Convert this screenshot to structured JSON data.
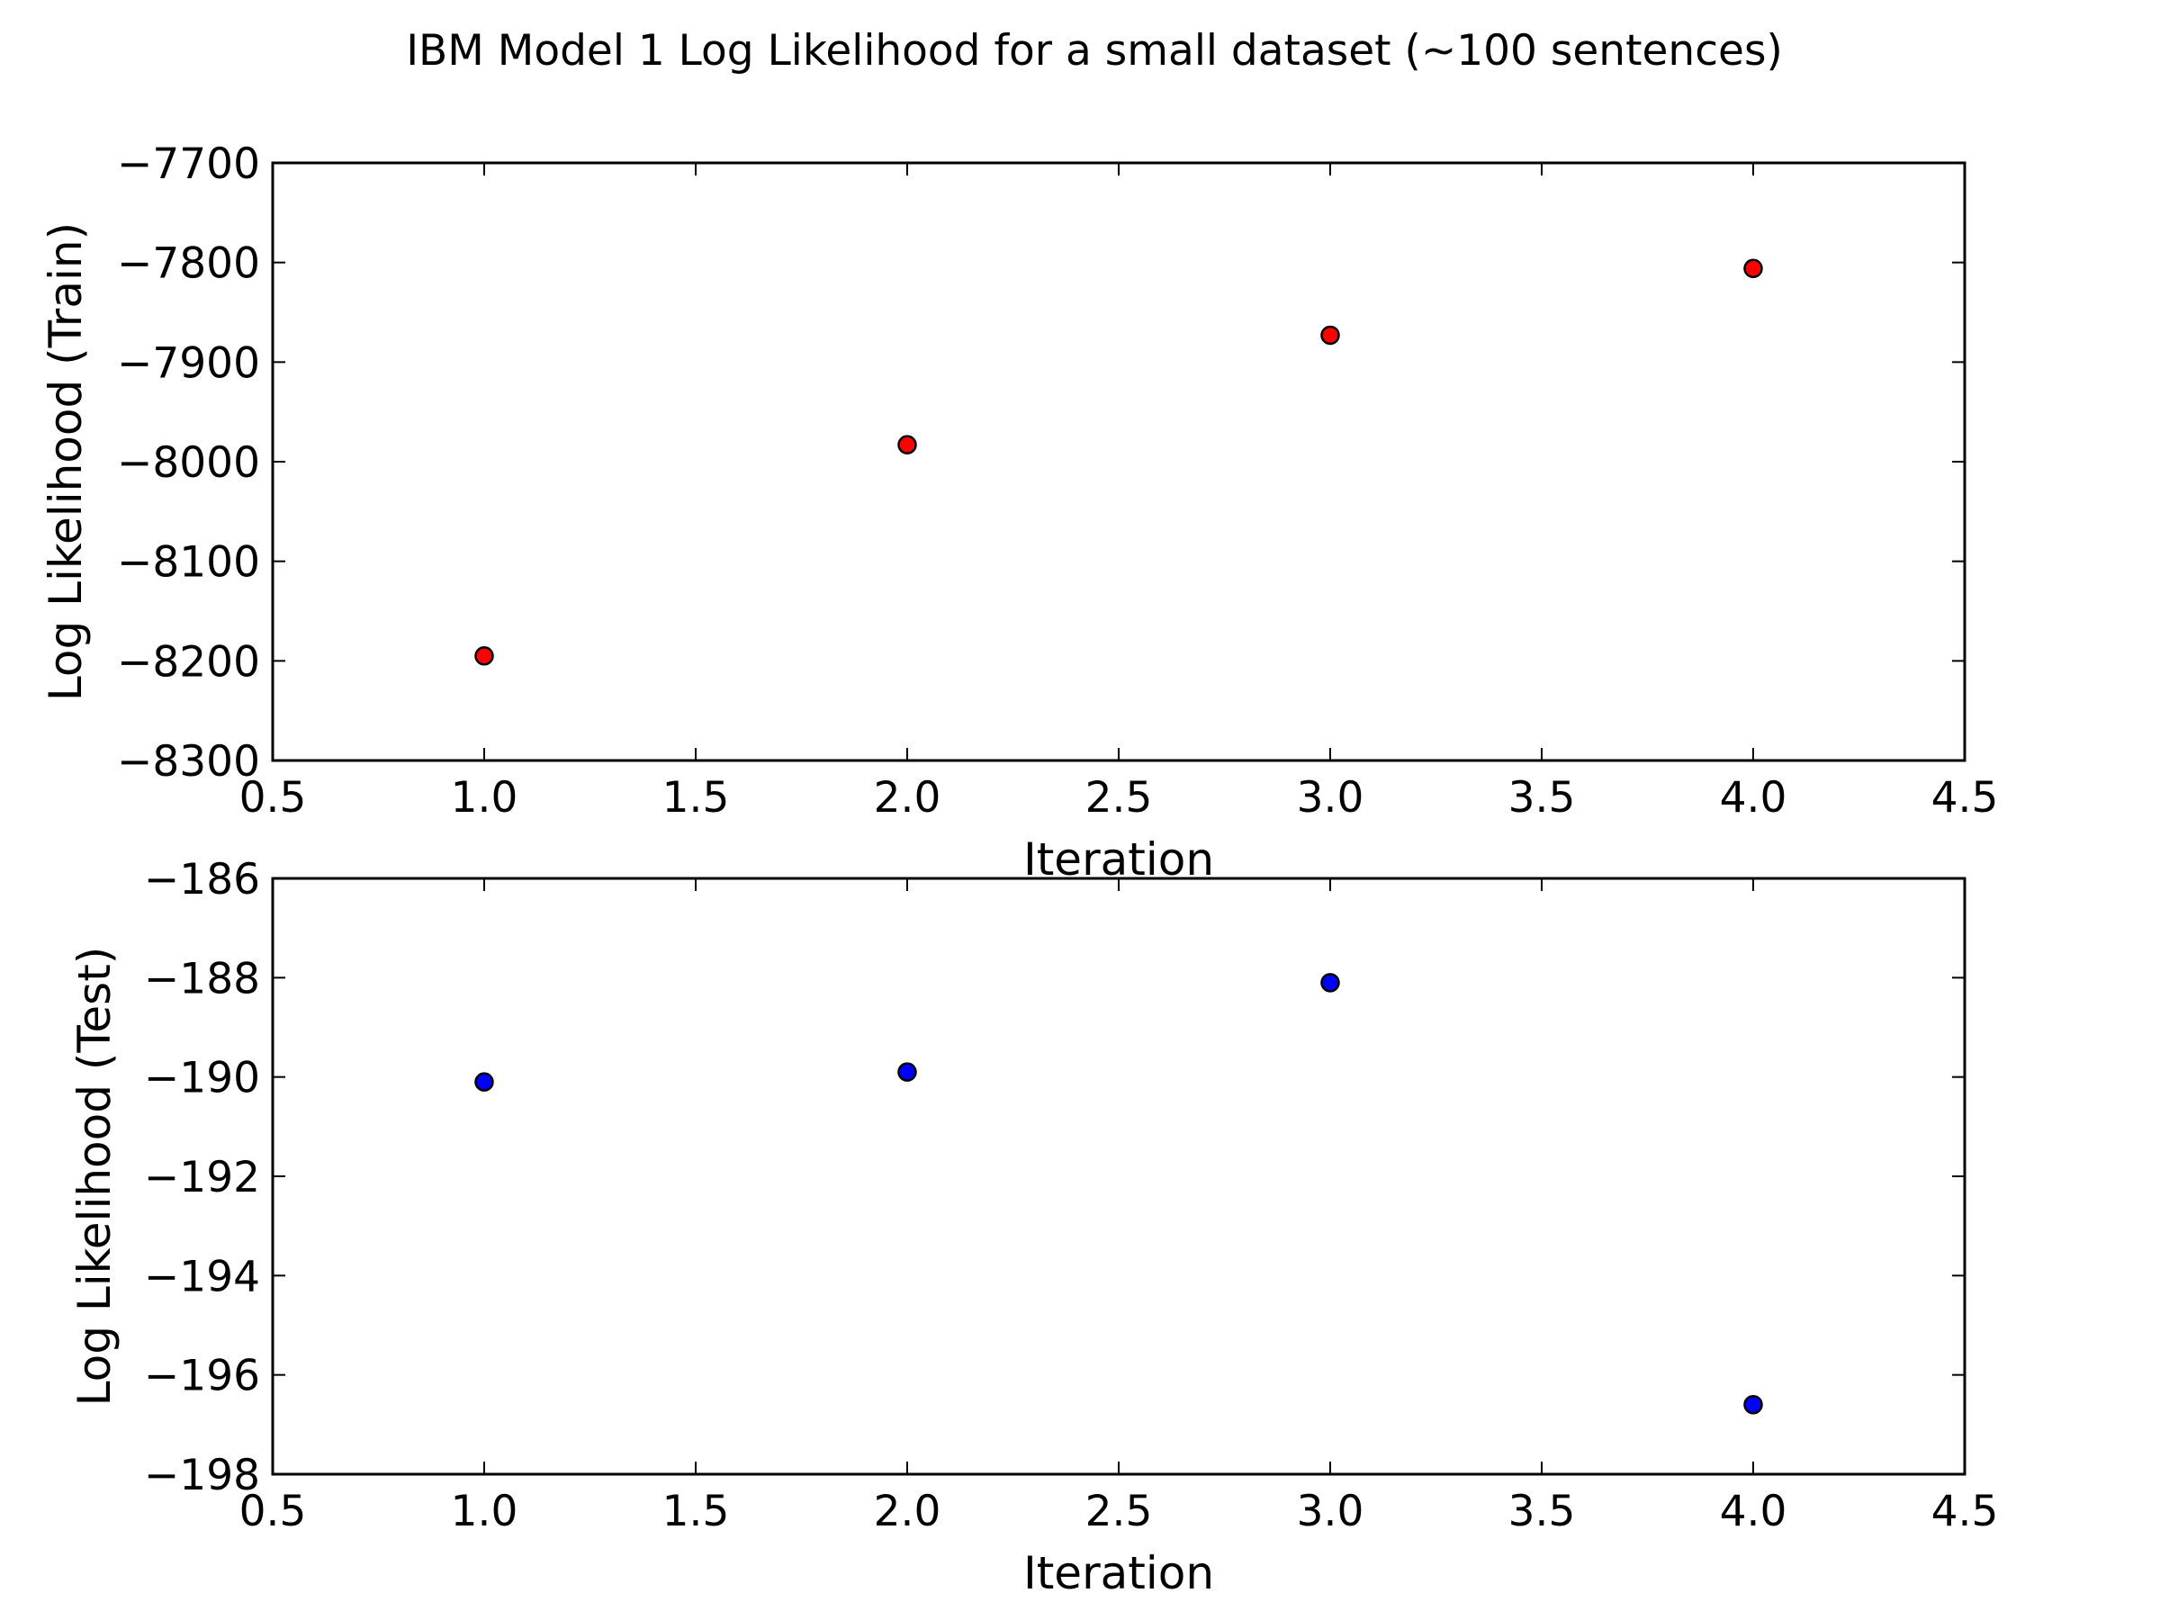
{
  "figure": {
    "title": "IBM Model 1 Log Likelihood for a small dataset (~100 sentences)"
  },
  "chart_data": [
    {
      "type": "scatter",
      "title": "",
      "xlabel": "Iteration",
      "ylabel": "Log Likelihood (Train)",
      "xlim": [
        0.5,
        4.5
      ],
      "ylim": [
        -8300,
        -7700
      ],
      "xticks": [
        0.5,
        1.0,
        1.5,
        2.0,
        2.5,
        3.0,
        3.5,
        4.0,
        4.5
      ],
      "xtick_labels": [
        "0.5",
        "1.0",
        "1.5",
        "2.0",
        "2.5",
        "3.0",
        "3.5",
        "4.0",
        "4.5"
      ],
      "yticks": [
        -8300,
        -8200,
        -8100,
        -8000,
        -7900,
        -7800,
        -7700
      ],
      "ytick_labels": [
        "−8300",
        "−8200",
        "−8100",
        "−8000",
        "−7900",
        "−7800",
        "−7700"
      ],
      "grid": false,
      "series": [
        {
          "x": [
            1.0,
            2.0,
            3.0,
            4.0
          ],
          "y": [
            -8195,
            -7983,
            -7873,
            -7806
          ],
          "color": "#ff0000"
        }
      ]
    },
    {
      "type": "scatter",
      "title": "",
      "xlabel": "Iteration",
      "ylabel": "Log Likelihood (Test)",
      "xlim": [
        0.5,
        4.5
      ],
      "ylim": [
        -198,
        -186
      ],
      "xticks": [
        0.5,
        1.0,
        1.5,
        2.0,
        2.5,
        3.0,
        3.5,
        4.0,
        4.5
      ],
      "xtick_labels": [
        "0.5",
        "1.0",
        "1.5",
        "2.0",
        "2.5",
        "3.0",
        "3.5",
        "4.0",
        "4.5"
      ],
      "yticks": [
        -198,
        -196,
        -194,
        -192,
        -190,
        -188,
        -186
      ],
      "ytick_labels": [
        "−198",
        "−196",
        "−194",
        "−192",
        "−190",
        "−188",
        "−186"
      ],
      "grid": false,
      "series": [
        {
          "x": [
            1.0,
            2.0,
            3.0,
            4.0
          ],
          "y": [
            -190.1,
            -189.9,
            -188.1,
            -196.6
          ],
          "color": "#0000ff"
        }
      ]
    }
  ]
}
